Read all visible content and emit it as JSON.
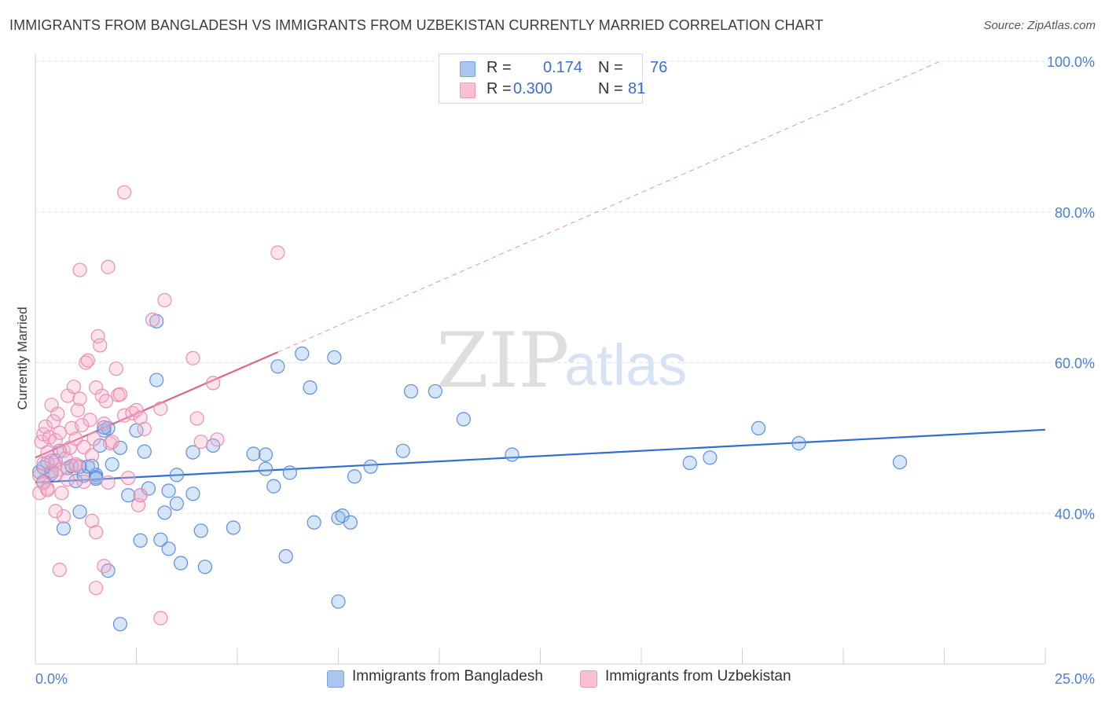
{
  "title": "IMMIGRANTS FROM BANGLADESH VS IMMIGRANTS FROM UZBEKISTAN CURRENTLY MARRIED CORRELATION CHART",
  "source": "Source: ZipAtlas.com",
  "watermark": {
    "zip": "ZIP",
    "atlas": "atlas"
  },
  "legend_top": [
    {
      "r_label": "R =",
      "r_value": "0.174",
      "n_label": "N =",
      "n_value": "76",
      "color": "#a9c6f0",
      "border": "#7aa5e3"
    },
    {
      "r_label": "R =",
      "r_value": "0.300",
      "n_label": "N =",
      "n_value": "81",
      "color": "#f8c0d2",
      "border": "#ee9ab6"
    }
  ],
  "chart_data": {
    "type": "scatter",
    "title": "IMMIGRANTS FROM BANGLADESH VS IMMIGRANTS FROM UZBEKISTAN CURRENTLY MARRIED CORRELATION CHART",
    "xlabel": "",
    "ylabel": "Currently Married",
    "xlim": [
      0,
      25
    ],
    "ylim": [
      20,
      100
    ],
    "x_tick_labels": [
      "0.0%",
      "25.0%"
    ],
    "y_ticks": [
      40,
      60,
      80,
      100
    ],
    "y_tick_labels": [
      "40.0%",
      "60.0%",
      "80.0%",
      "100.0%"
    ],
    "grid": true,
    "legend_position": "bottom",
    "series": [
      {
        "name": "Immigrants from Bangladesh",
        "color": "#5b8fde",
        "fill": "rgba(140,180,235,0.35)",
        "trend": {
          "x": [
            0,
            25
          ],
          "y": [
            44.1,
            51.1
          ],
          "color": "#2f6fcf",
          "dashed_to": null
        },
        "points": [
          [
            0.1,
            45.5
          ],
          [
            0.2,
            44.2
          ],
          [
            0.3,
            46.7
          ],
          [
            0.4,
            45.3
          ],
          [
            0.5,
            47.0
          ],
          [
            0.6,
            48.3
          ],
          [
            0.8,
            46.0
          ],
          [
            0.9,
            46.3
          ],
          [
            1.0,
            44.3
          ],
          [
            1.1,
            46.2
          ],
          [
            1.2,
            45.0
          ],
          [
            1.3,
            46.2
          ],
          [
            1.5,
            45.1
          ],
          [
            1.5,
            44.8
          ],
          [
            1.6,
            49.0
          ],
          [
            1.7,
            51.0
          ],
          [
            1.8,
            51.3
          ],
          [
            1.9,
            46.5
          ],
          [
            2.1,
            48.7
          ],
          [
            2.3,
            42.4
          ],
          [
            2.5,
            51.0
          ],
          [
            2.6,
            42.4
          ],
          [
            2.7,
            48.2
          ],
          [
            2.8,
            43.3
          ],
          [
            3.0,
            65.5
          ],
          [
            3.0,
            57.7
          ],
          [
            3.1,
            36.5
          ],
          [
            3.2,
            40.1
          ],
          [
            3.3,
            43.0
          ],
          [
            3.5,
            41.3
          ],
          [
            3.5,
            45.1
          ],
          [
            3.6,
            33.4
          ],
          [
            3.9,
            48.1
          ],
          [
            3.9,
            42.6
          ],
          [
            4.1,
            37.7
          ],
          [
            4.2,
            32.9
          ],
          [
            4.4,
            49.0
          ],
          [
            4.9,
            38.1
          ],
          [
            5.4,
            47.9
          ],
          [
            5.7,
            45.9
          ],
          [
            5.7,
            47.8
          ],
          [
            5.9,
            43.6
          ],
          [
            6.0,
            59.5
          ],
          [
            6.2,
            34.3
          ],
          [
            6.3,
            45.4
          ],
          [
            6.6,
            61.2
          ],
          [
            6.8,
            56.7
          ],
          [
            6.9,
            38.8
          ],
          [
            7.4,
            60.7
          ],
          [
            7.5,
            28.3
          ],
          [
            7.5,
            39.4
          ],
          [
            7.6,
            39.7
          ],
          [
            7.8,
            38.8
          ],
          [
            7.9,
            44.9
          ],
          [
            8.3,
            46.2
          ],
          [
            9.1,
            48.3
          ],
          [
            9.3,
            56.2
          ],
          [
            9.9,
            56.2
          ],
          [
            10.6,
            52.5
          ],
          [
            11.8,
            47.8
          ],
          [
            16.2,
            46.7
          ],
          [
            16.7,
            47.4
          ],
          [
            17.9,
            51.3
          ],
          [
            18.9,
            49.3
          ],
          [
            21.4,
            46.8
          ],
          [
            0.7,
            38.0
          ],
          [
            1.1,
            40.2
          ],
          [
            1.8,
            32.4
          ],
          [
            2.1,
            25.3
          ],
          [
            2.6,
            36.4
          ],
          [
            3.3,
            35.3
          ],
          [
            1.7,
            51.4
          ],
          [
            0.4,
            45.6
          ],
          [
            1.4,
            46.3
          ],
          [
            0.2,
            46.1
          ],
          [
            1.5,
            44.6
          ]
        ]
      },
      {
        "name": "Immigrants from Uzbekistan",
        "color": "#ea8fb0",
        "fill": "rgba(246,175,200,0.35)",
        "trend": {
          "x": [
            0,
            6.0
          ],
          "y": [
            47.4,
            61.4
          ],
          "color": "#e0638f",
          "dashed_to": [
            22.4,
            100
          ]
        },
        "points": [
          [
            0.1,
            45.0
          ],
          [
            0.1,
            42.7
          ],
          [
            0.15,
            49.5
          ],
          [
            0.2,
            50.5
          ],
          [
            0.2,
            46.6
          ],
          [
            0.25,
            51.5
          ],
          [
            0.3,
            48.1
          ],
          [
            0.3,
            43.3
          ],
          [
            0.35,
            50.1
          ],
          [
            0.4,
            54.4
          ],
          [
            0.45,
            52.2
          ],
          [
            0.5,
            49.7
          ],
          [
            0.5,
            46.4
          ],
          [
            0.55,
            53.2
          ],
          [
            0.6,
            50.7
          ],
          [
            0.6,
            45.8
          ],
          [
            0.65,
            42.7
          ],
          [
            0.7,
            48.3
          ],
          [
            0.7,
            39.6
          ],
          [
            0.75,
            47.3
          ],
          [
            0.8,
            55.6
          ],
          [
            0.85,
            48.7
          ],
          [
            0.9,
            51.3
          ],
          [
            0.95,
            56.8
          ],
          [
            1.0,
            49.9
          ],
          [
            1.0,
            46.3
          ],
          [
            1.05,
            53.7
          ],
          [
            1.1,
            55.2
          ],
          [
            1.15,
            51.7
          ],
          [
            1.2,
            48.8
          ],
          [
            1.2,
            44.2
          ],
          [
            1.25,
            60.0
          ],
          [
            1.3,
            60.3
          ],
          [
            1.35,
            52.4
          ],
          [
            1.4,
            47.7
          ],
          [
            1.45,
            49.9
          ],
          [
            1.5,
            56.7
          ],
          [
            1.55,
            63.5
          ],
          [
            1.6,
            62.3
          ],
          [
            1.65,
            55.6
          ],
          [
            1.7,
            51.9
          ],
          [
            1.75,
            54.9
          ],
          [
            1.8,
            44.1
          ],
          [
            1.85,
            49.3
          ],
          [
            1.9,
            49.5
          ],
          [
            2.0,
            59.2
          ],
          [
            2.05,
            55.7
          ],
          [
            2.1,
            55.8
          ],
          [
            2.2,
            53.0
          ],
          [
            2.3,
            44.7
          ],
          [
            2.4,
            53.3
          ],
          [
            2.5,
            53.7
          ],
          [
            2.55,
            41.1
          ],
          [
            2.6,
            52.7
          ],
          [
            2.7,
            51.2
          ],
          [
            2.9,
            65.7
          ],
          [
            3.1,
            53.9
          ],
          [
            3.2,
            68.3
          ],
          [
            3.9,
            60.6
          ],
          [
            4.0,
            52.6
          ],
          [
            4.1,
            49.5
          ],
          [
            4.4,
            57.3
          ],
          [
            4.5,
            49.8
          ],
          [
            6.0,
            74.6
          ],
          [
            2.2,
            82.6
          ],
          [
            1.1,
            72.3
          ],
          [
            1.8,
            72.7
          ],
          [
            0.6,
            32.5
          ],
          [
            1.5,
            30.1
          ],
          [
            1.7,
            33.0
          ],
          [
            3.1,
            26.1
          ],
          [
            0.5,
            40.3
          ],
          [
            1.4,
            39.0
          ],
          [
            1.5,
            37.5
          ],
          [
            0.8,
            44.5
          ],
          [
            2.6,
            42.4
          ],
          [
            0.2,
            44.0
          ],
          [
            0.3,
            43.1
          ],
          [
            0.4,
            47.0
          ],
          [
            0.5,
            45.2
          ],
          [
            1.0,
            46.5
          ]
        ]
      }
    ]
  }
}
